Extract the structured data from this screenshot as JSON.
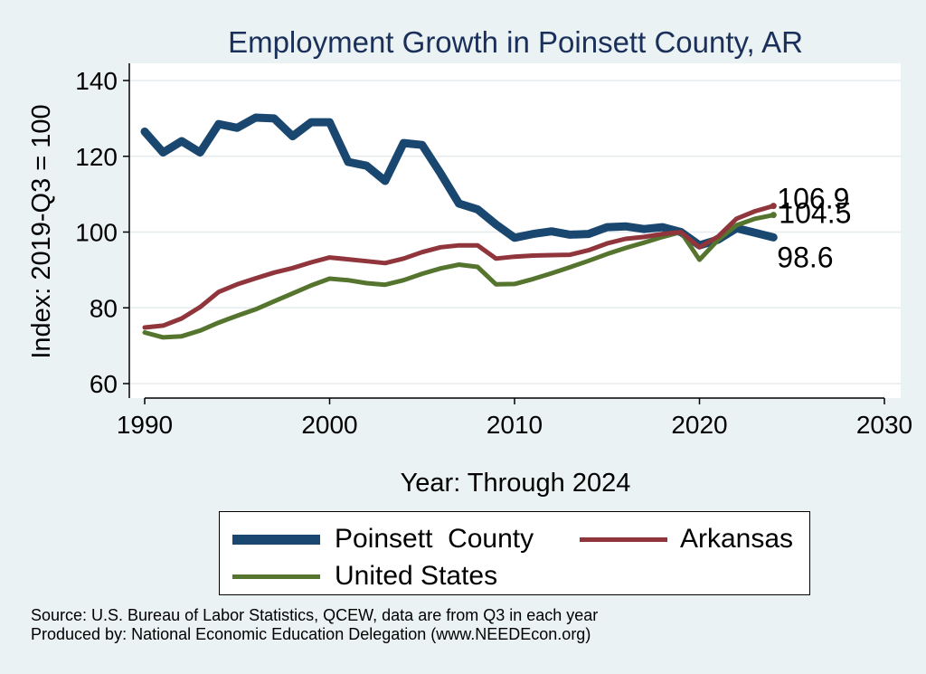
{
  "chart_data": {
    "type": "line",
    "title": "Employment Growth in Poinsett County, AR",
    "xlabel": "Year: Through 2024",
    "ylabel": "Index: 2019-Q3 = 100",
    "xlim": [
      1990,
      2030
    ],
    "ylim": [
      60,
      140
    ],
    "x_ticks": [
      "1990",
      "2000",
      "2010",
      "2020",
      "2030"
    ],
    "y_ticks": [
      "60",
      "80",
      "100",
      "120",
      "140"
    ],
    "grid": true,
    "legend_position": "bottom",
    "x": [
      1990,
      1991,
      1992,
      1993,
      1994,
      1995,
      1996,
      1997,
      1998,
      1999,
      2000,
      2001,
      2002,
      2003,
      2004,
      2005,
      2006,
      2007,
      2008,
      2009,
      2010,
      2011,
      2012,
      2013,
      2014,
      2015,
      2016,
      2017,
      2018,
      2019,
      2020,
      2021,
      2022,
      2023,
      2024
    ],
    "series": [
      {
        "name": "Poinsett  County",
        "color": "#1a476f",
        "values": [
          126.5,
          121.0,
          124.0,
          121.0,
          128.5,
          127.5,
          130.2,
          130.0,
          125.3,
          129.0,
          129.0,
          118.5,
          117.5,
          113.5,
          123.5,
          123.0,
          115.5,
          107.5,
          106.0,
          102.0,
          98.5,
          99.5,
          100.2,
          99.3,
          99.5,
          101.3,
          101.5,
          100.8,
          101.3,
          100.0,
          96.5,
          98.0,
          101.0,
          99.8,
          98.6
        ],
        "end_label": "98.6"
      },
      {
        "name": "Arkansas",
        "color": "#90353b",
        "values": [
          74.8,
          75.3,
          77.2,
          80.2,
          84.2,
          86.2,
          87.8,
          89.3,
          90.5,
          92.0,
          93.3,
          92.8,
          92.3,
          91.8,
          93.0,
          94.7,
          96.0,
          96.5,
          96.5,
          93.0,
          93.5,
          93.8,
          93.9,
          94.0,
          95.2,
          97.0,
          98.2,
          98.7,
          99.5,
          100.0,
          96.0,
          98.8,
          103.5,
          105.5,
          106.9
        ],
        "end_label": "106.9"
      },
      {
        "name": "United States",
        "color": "#55752f",
        "values": [
          73.5,
          72.2,
          72.5,
          74.0,
          76.1,
          77.9,
          79.6,
          81.7,
          83.8,
          85.9,
          87.7,
          87.3,
          86.5,
          86.1,
          87.3,
          89.0,
          90.4,
          91.4,
          90.8,
          86.2,
          86.3,
          87.6,
          89.1,
          90.7,
          92.4,
          94.2,
          95.8,
          97.2,
          98.7,
          100.0,
          92.7,
          97.9,
          101.8,
          103.5,
          104.5
        ],
        "end_label": "104.5"
      }
    ]
  },
  "source_lines": [
    "Source: U.S. Bureau of Labor Statistics, QCEW, data are from Q3 in each year",
    "Produced by: National Economic Education Delegation (www.NEEDEcon.org)"
  ]
}
